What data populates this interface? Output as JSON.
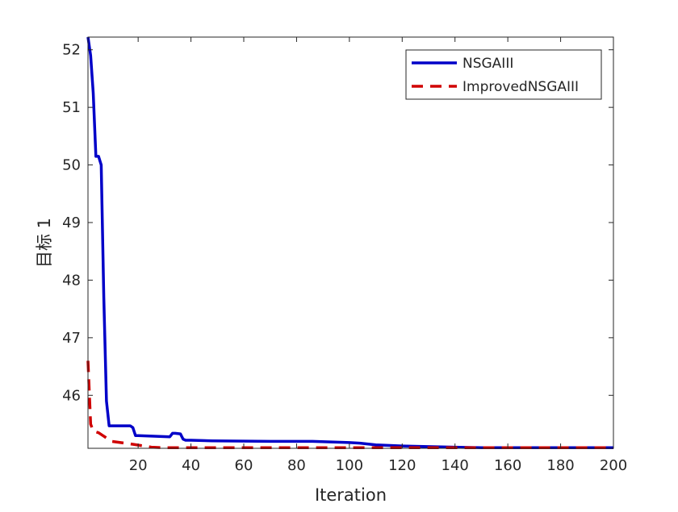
{
  "chart_data": {
    "type": "line",
    "title": "",
    "xlabel": "Iteration",
    "ylabel": "目标 1",
    "xlim": [
      1,
      200
    ],
    "ylim": [
      45.08,
      52.22
    ],
    "xticks": [
      20,
      40,
      60,
      80,
      100,
      120,
      140,
      160,
      180,
      200
    ],
    "yticks": [
      46,
      47,
      48,
      49,
      50,
      51,
      52
    ],
    "legend_position": "top-right",
    "grid": false,
    "series": [
      {
        "name": "NSGAIII",
        "color": "#0000c8",
        "style": "solid",
        "x": [
          1,
          2,
          3,
          4,
          5,
          6,
          7,
          8,
          9,
          10,
          17,
          18,
          19,
          20,
          32,
          33,
          34,
          36,
          37,
          38,
          40,
          48,
          70,
          82,
          86,
          100,
          104,
          110,
          120,
          140,
          150,
          200
        ],
        "y": [
          52.22,
          51.9,
          51.25,
          50.15,
          50.15,
          50.0,
          47.7,
          45.9,
          45.47,
          45.47,
          45.47,
          45.44,
          45.3,
          45.3,
          45.28,
          45.34,
          45.34,
          45.33,
          45.24,
          45.22,
          45.22,
          45.21,
          45.2,
          45.2,
          45.2,
          45.18,
          45.17,
          45.14,
          45.12,
          45.1,
          45.09,
          45.09
        ]
      },
      {
        "name": "ImprovedNSGAIII",
        "color": "#d00000",
        "style": "dashed",
        "x": [
          1,
          2,
          3,
          5,
          10,
          18,
          25,
          30,
          40,
          60,
          100,
          140,
          200
        ],
        "y": [
          46.6,
          45.5,
          45.38,
          45.35,
          45.2,
          45.15,
          45.1,
          45.09,
          45.09,
          45.09,
          45.09,
          45.09,
          45.09
        ]
      }
    ]
  }
}
